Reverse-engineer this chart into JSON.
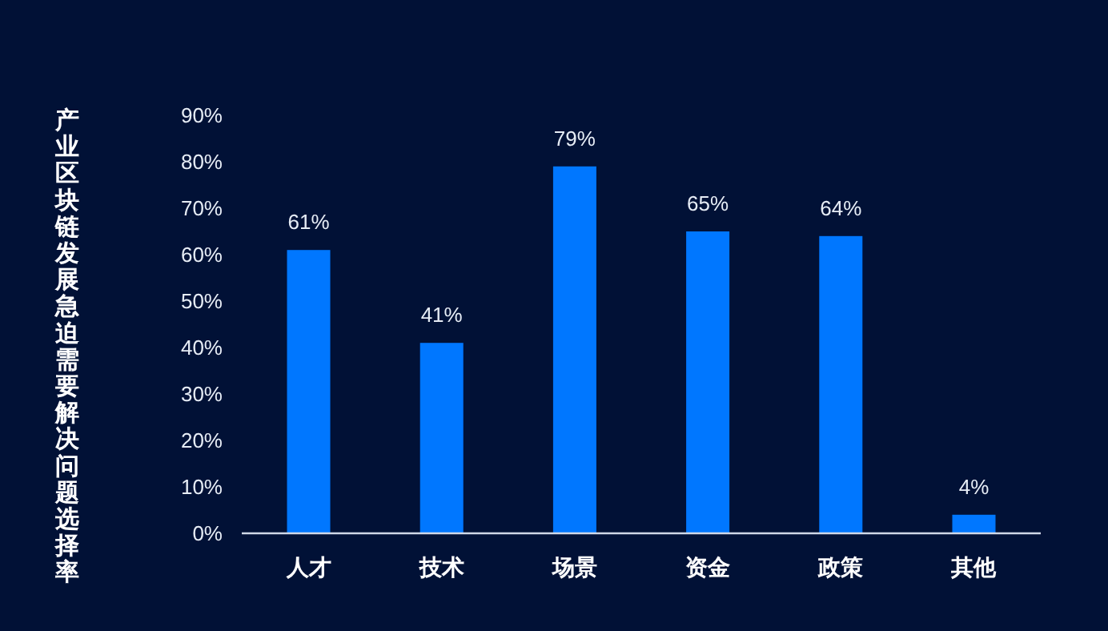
{
  "chart_data": {
    "type": "bar",
    "ylabel": "产业区块链发展急迫需要解决问题选择率",
    "categories": [
      "人才",
      "技术",
      "场景",
      "资金",
      "政策",
      "其他"
    ],
    "values": [
      61,
      41,
      79,
      65,
      64,
      4
    ],
    "color": "#0077ff",
    "value_labels": [
      "61%",
      "41%",
      "79%",
      "65%",
      "64%",
      "4%"
    ],
    "ylim": [
      0,
      90
    ],
    "yticks": [
      {
        "value": 0,
        "label": "0%"
      },
      {
        "value": 10,
        "label": "10%"
      },
      {
        "value": 20,
        "label": "20%"
      },
      {
        "value": 30,
        "label": "30%"
      },
      {
        "value": 40,
        "label": "40%"
      },
      {
        "value": 50,
        "label": "50%"
      },
      {
        "value": 60,
        "label": "60%"
      },
      {
        "value": 70,
        "label": "70%"
      },
      {
        "value": 80,
        "label": "80%"
      },
      {
        "value": 90,
        "label": "90%"
      }
    ],
    "grid": false
  }
}
